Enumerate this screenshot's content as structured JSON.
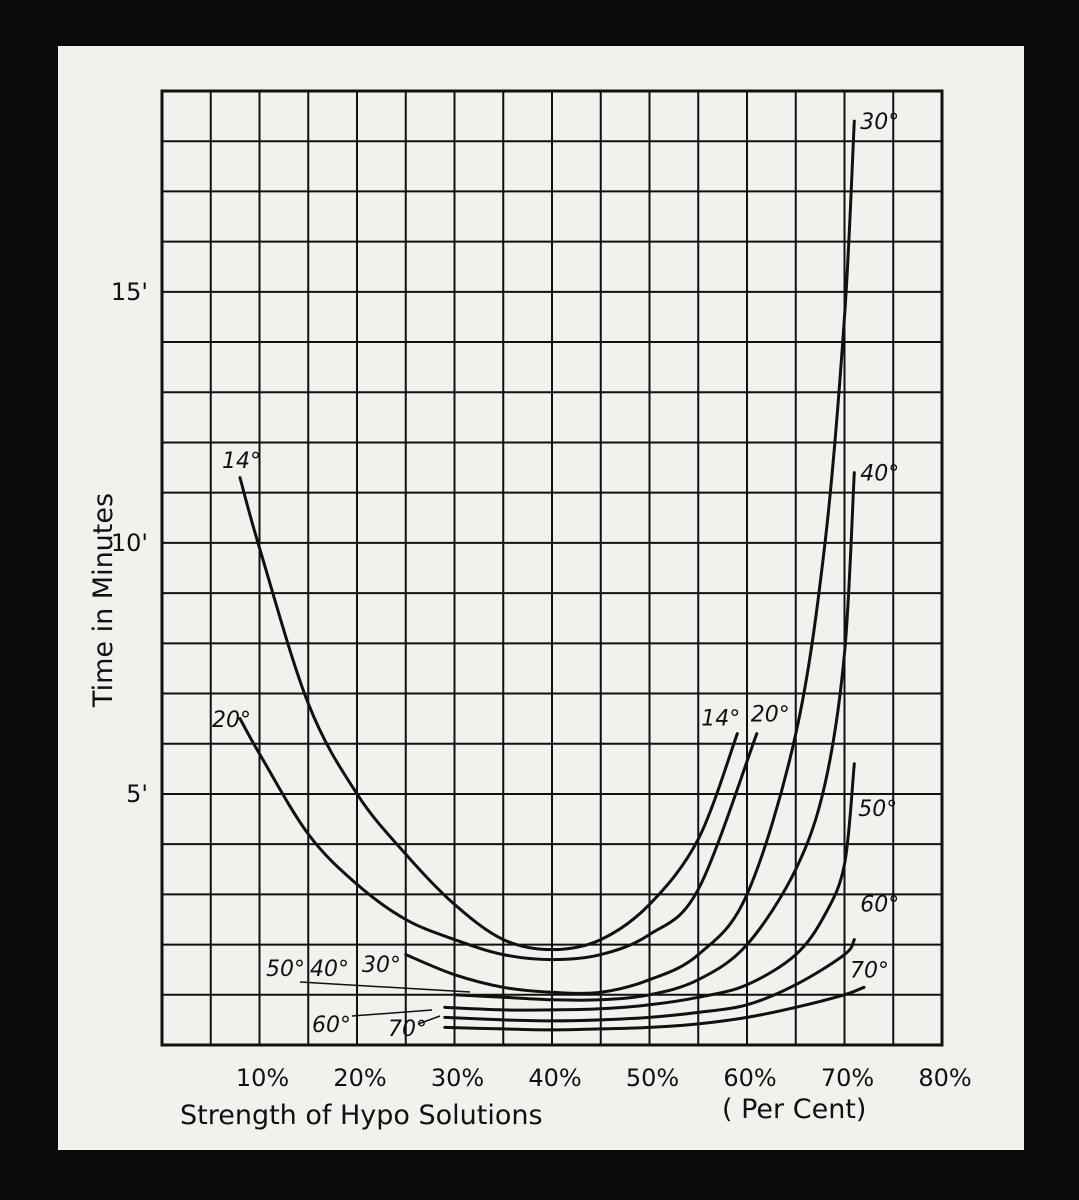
{
  "chart_data": {
    "type": "line",
    "title": "",
    "xlabel": "Strength of Hypo Solutions",
    "xlabel_unit": "( Per Cent)",
    "ylabel": "Time in Minutes",
    "xlim": [
      0,
      80
    ],
    "ylim": [
      0,
      19
    ],
    "x_ticks": [
      {
        "value": 10,
        "label": "10%"
      },
      {
        "value": 20,
        "label": "20%"
      },
      {
        "value": 30,
        "label": "30%"
      },
      {
        "value": 40,
        "label": "40%"
      },
      {
        "value": 50,
        "label": "50%"
      },
      {
        "value": 60,
        "label": "60%"
      },
      {
        "value": 70,
        "label": "70%"
      },
      {
        "value": 80,
        "label": "80%"
      }
    ],
    "y_ticks": [
      {
        "value": 5,
        "label": "5'"
      },
      {
        "value": 10,
        "label": "10'"
      },
      {
        "value": 15,
        "label": "15'"
      }
    ],
    "grid": true,
    "grid_step_x": 5,
    "grid_step_y": 1,
    "series": [
      {
        "name": "14°",
        "end_label": "14°",
        "x": [
          8,
          10,
          15,
          20,
          25,
          30,
          35,
          40,
          45,
          50,
          55,
          59
        ],
        "y": [
          11.3,
          9.9,
          6.8,
          5.0,
          3.8,
          2.8,
          2.1,
          1.9,
          2.1,
          2.8,
          4.1,
          6.2
        ]
      },
      {
        "name": "20°",
        "end_label": "20°",
        "x": [
          8,
          10,
          15,
          20,
          25,
          30,
          35,
          40,
          45,
          50,
          55,
          61
        ],
        "y": [
          6.5,
          5.8,
          4.2,
          3.2,
          2.5,
          2.1,
          1.8,
          1.7,
          1.8,
          2.2,
          3.1,
          6.2
        ]
      },
      {
        "name": "30°",
        "end_label": "30°",
        "x": [
          25,
          30,
          35,
          40,
          45,
          50,
          55,
          60,
          65,
          68,
          70,
          71
        ],
        "y": [
          1.8,
          1.4,
          1.15,
          1.05,
          1.05,
          1.3,
          1.8,
          3.0,
          6.2,
          10.0,
          14.5,
          18.4
        ]
      },
      {
        "name": "40°",
        "end_label": "40°",
        "x": [
          30,
          35,
          40,
          45,
          50,
          55,
          60,
          65,
          68,
          70,
          71
        ],
        "y": [
          1.0,
          0.95,
          0.9,
          0.9,
          1.0,
          1.3,
          2.0,
          3.5,
          5.2,
          7.8,
          11.4
        ]
      },
      {
        "name": "50°",
        "end_label": "50°",
        "x": [
          29,
          35,
          40,
          45,
          50,
          55,
          60,
          65,
          68,
          70,
          71
        ],
        "y": [
          0.75,
          0.7,
          0.7,
          0.72,
          0.8,
          0.95,
          1.2,
          1.8,
          2.6,
          3.6,
          5.6
        ]
      },
      {
        "name": "60°",
        "end_label": "60°",
        "x": [
          29,
          35,
          40,
          45,
          50,
          55,
          60,
          65,
          70,
          71
        ],
        "y": [
          0.55,
          0.5,
          0.48,
          0.5,
          0.55,
          0.65,
          0.8,
          1.2,
          1.8,
          2.1
        ]
      },
      {
        "name": "70°",
        "end_label": "70°",
        "x": [
          29,
          35,
          40,
          45,
          50,
          55,
          60,
          65,
          70,
          72
        ],
        "y": [
          0.35,
          0.32,
          0.3,
          0.32,
          0.35,
          0.42,
          0.55,
          0.75,
          1.0,
          1.15
        ]
      }
    ],
    "left_labels": [
      {
        "label": "14°",
        "series": "14°"
      },
      {
        "label": "20°",
        "series": "20°"
      },
      {
        "label": "50°",
        "series": "50°"
      },
      {
        "label": "40°",
        "series": "40°"
      },
      {
        "label": "30°",
        "series": "30°"
      },
      {
        "label": "60°",
        "series": "60°"
      },
      {
        "label": "70°",
        "series": "70°"
      }
    ]
  }
}
